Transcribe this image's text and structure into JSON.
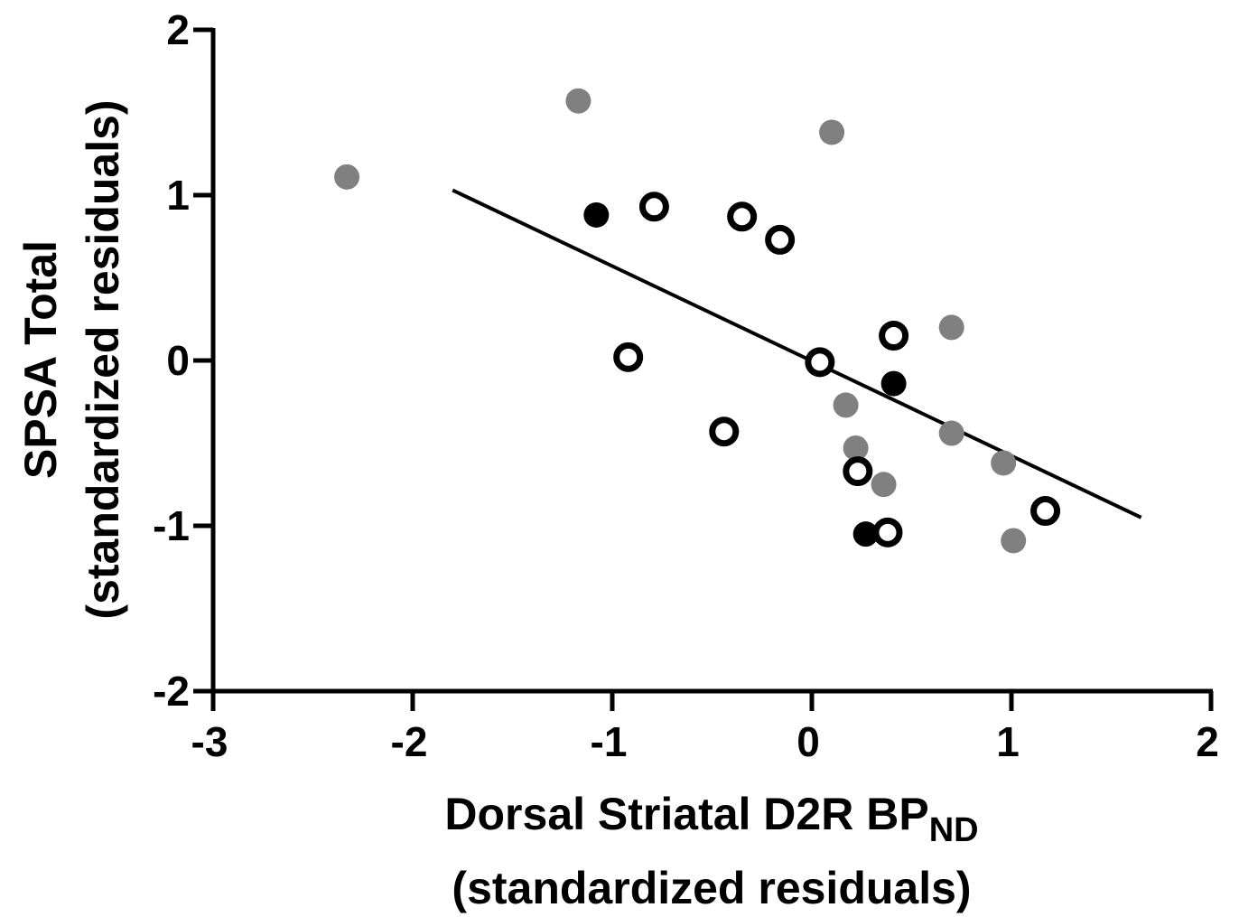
{
  "chart_data": {
    "type": "scatter",
    "xlabel": {
      "line1_main": "Dorsal Striatal D2R BP",
      "line1_subscript": "ND",
      "line2": "(standardized residuals)"
    },
    "ylabel": {
      "line1": "SPSA Total",
      "line2": "(standardized residuals)"
    },
    "xlim": [
      -3,
      2
    ],
    "ylim": [
      -2,
      2
    ],
    "xticks": [
      "-3",
      "-2",
      "-1",
      "0",
      "1",
      "2"
    ],
    "yticks": [
      "-2",
      "-1",
      "0",
      "1",
      "2"
    ],
    "grid": false,
    "series": [
      {
        "marker": "filled-gray",
        "color": "#808080",
        "points": [
          [
            -2.33,
            1.11
          ],
          [
            -1.17,
            1.57
          ],
          [
            0.1,
            1.38
          ],
          [
            0.7,
            0.2
          ],
          [
            0.17,
            -0.27
          ],
          [
            0.22,
            -0.53
          ],
          [
            0.36,
            -0.75
          ],
          [
            0.7,
            -0.44
          ],
          [
            0.96,
            -0.62
          ],
          [
            1.01,
            -1.09
          ]
        ]
      },
      {
        "marker": "filled-black",
        "color": "#000000",
        "points": [
          [
            -1.08,
            0.88
          ],
          [
            0.41,
            -0.14
          ],
          [
            0.27,
            -1.05
          ]
        ]
      },
      {
        "marker": "open-black",
        "color": "#000000",
        "points": [
          [
            -0.79,
            0.93
          ],
          [
            -0.35,
            0.87
          ],
          [
            -0.16,
            0.73
          ],
          [
            -0.92,
            0.02
          ],
          [
            -0.44,
            -0.43
          ],
          [
            0.04,
            -0.01
          ],
          [
            0.41,
            0.15
          ],
          [
            0.23,
            -0.67
          ],
          [
            0.38,
            -1.04
          ],
          [
            1.17,
            -0.91
          ]
        ]
      }
    ],
    "regression_line": {
      "color": "#000000",
      "points": [
        [
          -1.8,
          1.03
        ],
        [
          1.65,
          -0.95
        ]
      ]
    }
  }
}
